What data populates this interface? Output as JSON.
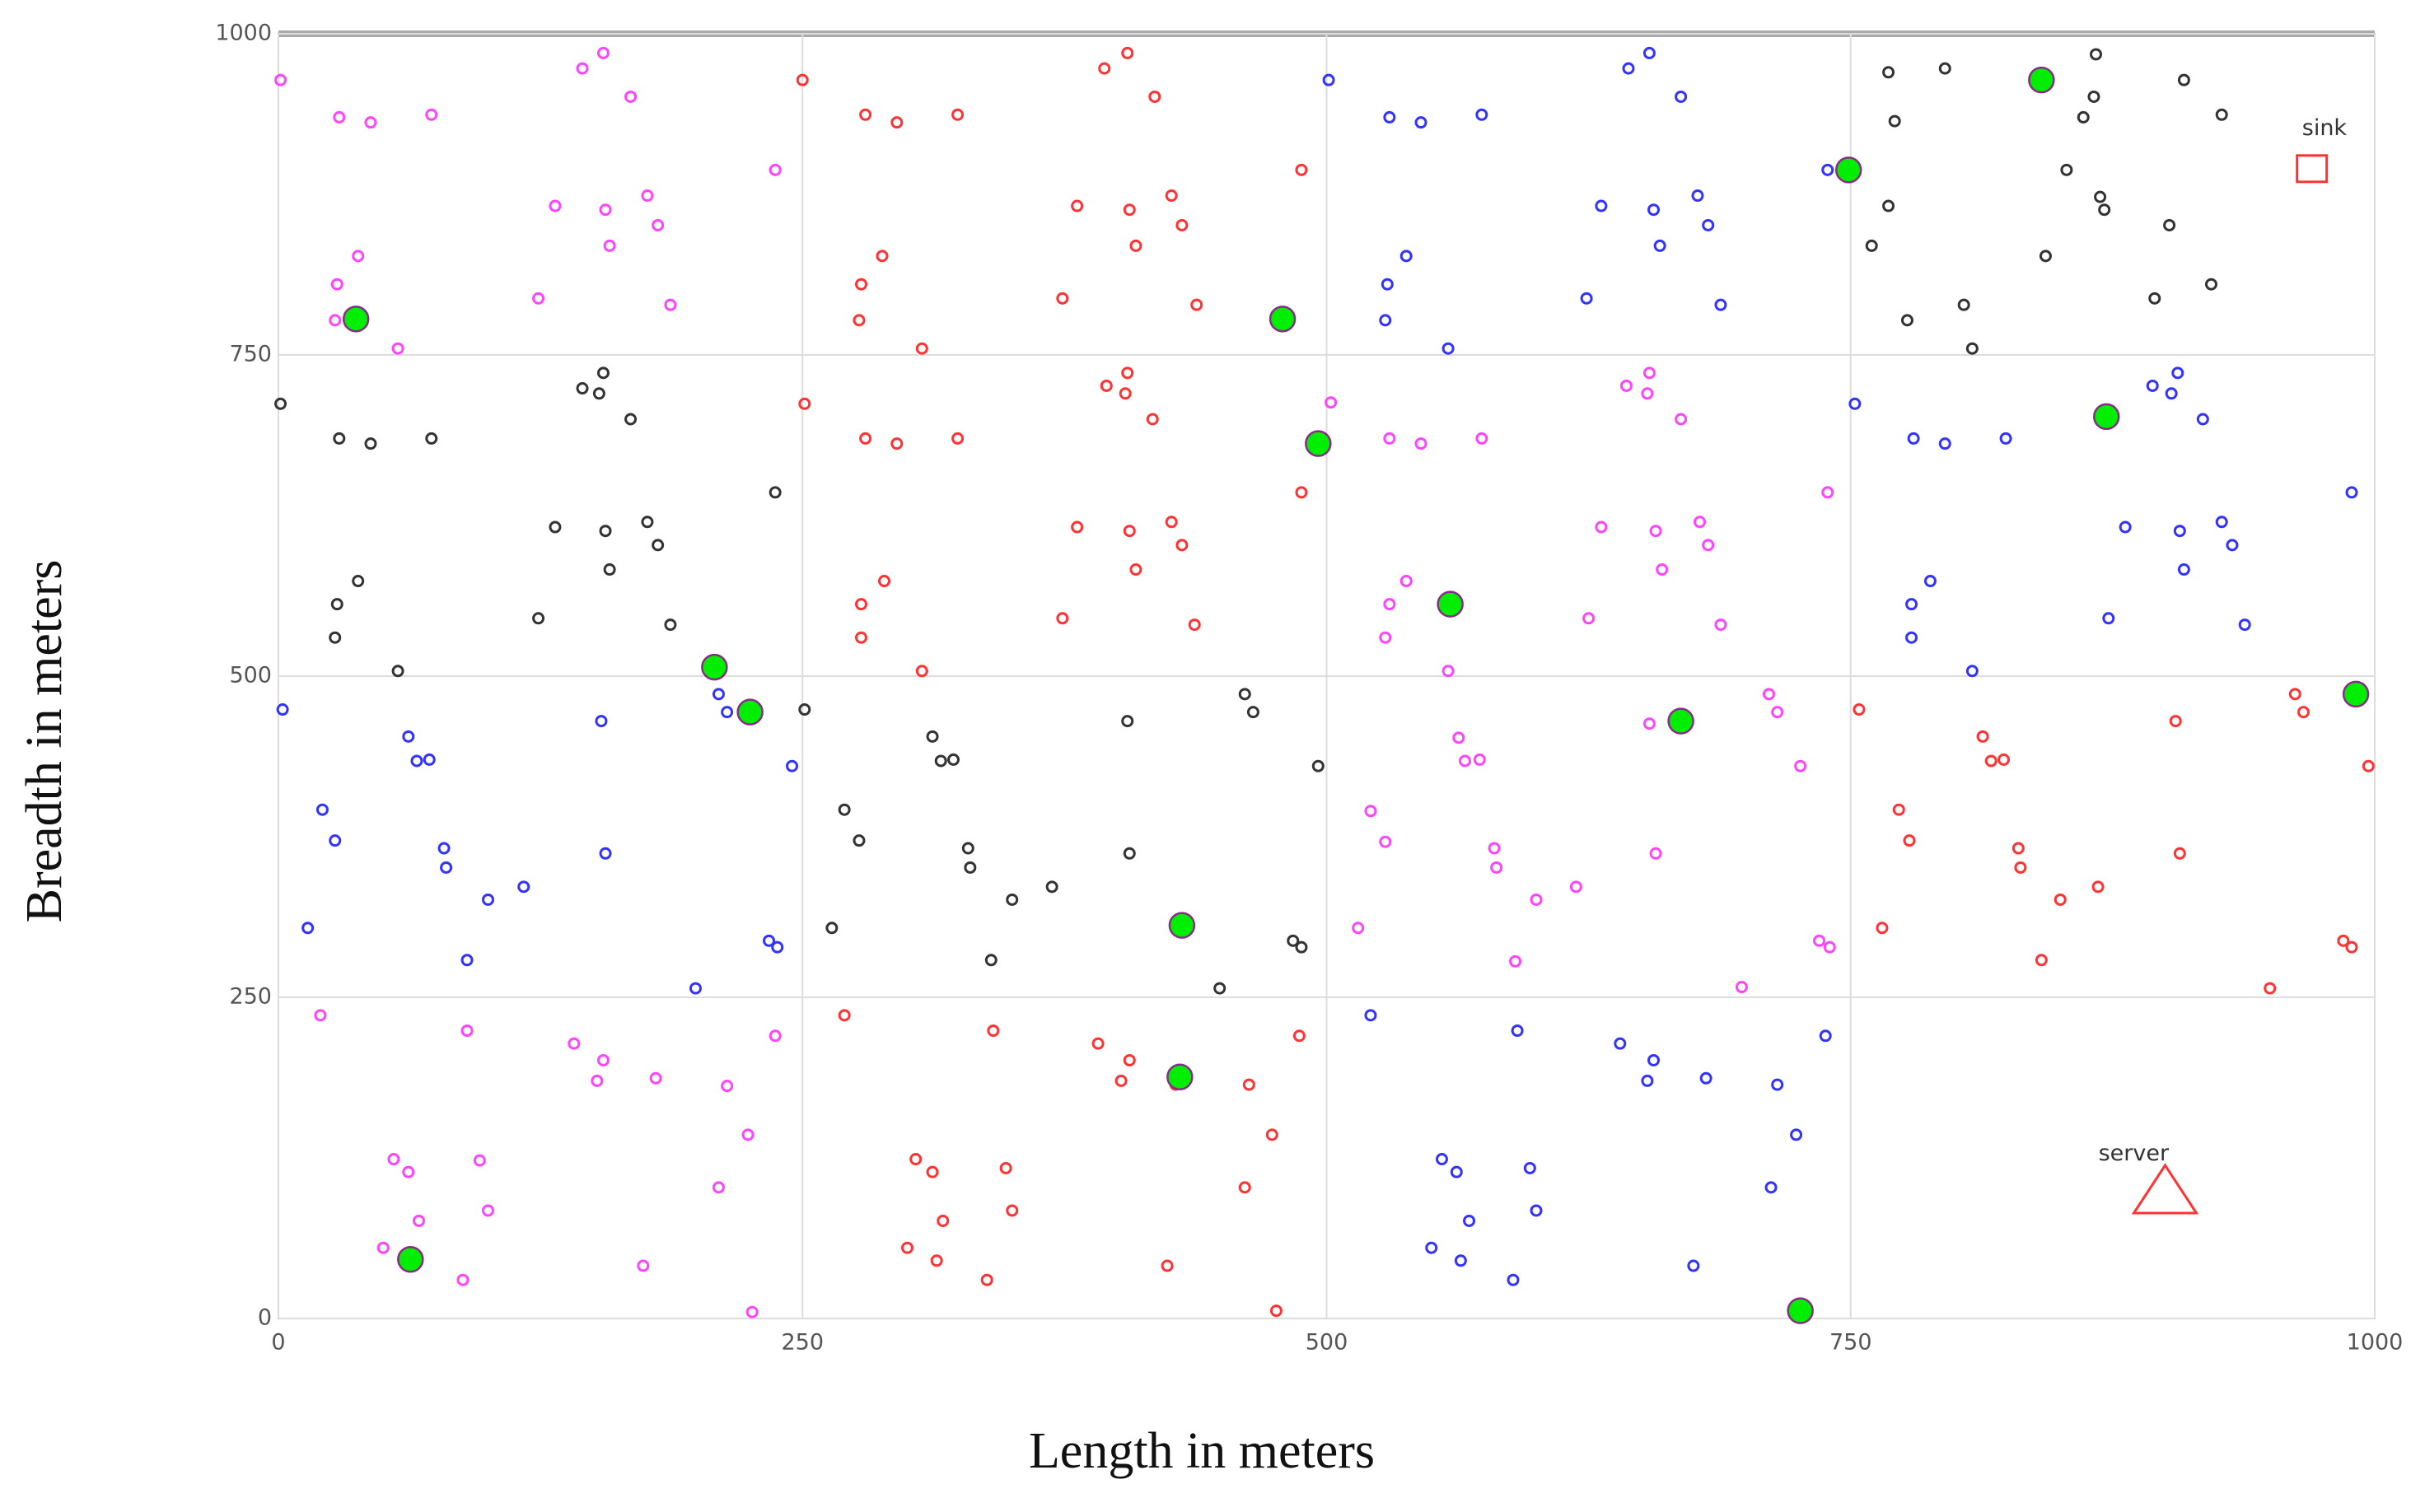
{
  "chart_data": {
    "type": "scatter",
    "x_label": "Length in meters",
    "y_label": "Breadth in meters",
    "xlim": [
      0,
      1000
    ],
    "ylim": [
      0,
      1000
    ],
    "xticks": [
      0,
      250,
      500,
      750,
      1000
    ],
    "yticks": [
      0,
      250,
      500,
      750,
      1000
    ],
    "grid": true,
    "series": [
      {
        "color": "#ff44ff",
        "marker": "ring",
        "x": [
          1,
          29,
          44,
          73,
          145,
          155,
          168,
          132,
          156,
          176,
          158,
          181,
          38,
          28,
          27,
          57,
          124,
          187,
          237,
          20,
          90,
          141,
          152,
          155,
          180,
          214,
          224,
          210,
          55,
          62,
          67,
          50,
          96,
          100,
          88,
          174,
          226,
          237,
          521,
          528,
          515,
          530,
          538,
          528,
          558,
          563,
          566,
          573,
          580,
          581,
          600,
          619,
          590,
          502,
          530,
          545,
          574,
          625,
          631,
          657,
          660,
          678,
          682,
          688,
          643,
          654,
          653,
          669,
          654,
          657,
          711,
          715,
          726,
          698,
          735,
          740,
          739
        ],
        "y": [
          964,
          935,
          931,
          937,
          973,
          985,
          951,
          866,
          863,
          874,
          835,
          851,
          827,
          805,
          777,
          755,
          794,
          789,
          894,
          236,
          224,
          214,
          185,
          201,
          187,
          181,
          143,
          102,
          124,
          114,
          76,
          55,
          123,
          84,
          30,
          41,
          5,
          220,
          395,
          371,
          304,
          556,
          574,
          530,
          504,
          452,
          434,
          435,
          366,
          351,
          326,
          336,
          278,
          713,
          685,
          681,
          685,
          545,
          616,
          613,
          583,
          620,
          602,
          540,
          726,
          736,
          720,
          700,
          463,
          362,
          486,
          472,
          430,
          258,
          294,
          289,
          643
        ]
      },
      {
        "color": "#ff3333",
        "marker": "ring",
        "x": [
          250,
          280,
          295,
          324,
          394,
          405,
          418,
          381,
          406,
          426,
          409,
          431,
          288,
          278,
          277,
          307,
          374,
          438,
          488,
          251,
          280,
          295,
          324,
          395,
          405,
          404,
          417,
          381,
          406,
          409,
          426,
          431,
          437,
          374,
          278,
          289,
          278,
          307,
          488,
          270,
          341,
          391,
          402,
          406,
          428,
          463,
          474,
          461,
          304,
          312,
          317,
          300,
          347,
          350,
          338,
          424,
          476,
          487,
          314,
          754,
          773,
          778,
          765,
          813,
          817,
          823,
          830,
          831,
          850,
          868,
          841,
          905,
          907,
          950,
          962,
          966,
          997,
          985,
          989
        ],
        "y": [
          964,
          937,
          931,
          937,
          973,
          985,
          951,
          866,
          863,
          874,
          835,
          851,
          827,
          805,
          777,
          755,
          794,
          789,
          894,
          712,
          685,
          681,
          685,
          726,
          736,
          720,
          700,
          616,
          613,
          583,
          620,
          602,
          540,
          545,
          556,
          574,
          530,
          504,
          643,
          236,
          224,
          214,
          185,
          201,
          182,
          182,
          143,
          102,
          124,
          114,
          76,
          55,
          117,
          84,
          30,
          41,
          6,
          220,
          45,
          474,
          396,
          372,
          304,
          453,
          434,
          435,
          366,
          351,
          326,
          336,
          279,
          465,
          362,
          257,
          486,
          472,
          430,
          294,
          289
        ]
      },
      {
        "color": "#3333ff",
        "marker": "ring",
        "x": [
          501,
          530,
          545,
          574,
          644,
          654,
          669,
          631,
          656,
          677,
          659,
          682,
          538,
          529,
          528,
          558,
          624,
          688,
          739,
          752,
          780,
          795,
          824,
          894,
          906,
          903,
          918,
          881,
          907,
          909,
          927,
          932,
          938,
          873,
          779,
          788,
          779,
          808,
          989,
          2,
          21,
          27,
          14,
          62,
          66,
          72,
          79,
          80,
          100,
          117,
          90,
          154,
          156,
          199,
          210,
          214,
          245,
          234,
          238,
          521,
          591,
          640,
          653,
          656,
          681,
          715,
          724,
          712,
          555,
          562,
          568,
          550,
          597,
          600,
          589,
          675,
          738,
          564
        ],
        "y": [
          964,
          935,
          931,
          937,
          973,
          985,
          951,
          866,
          863,
          874,
          835,
          851,
          827,
          805,
          777,
          755,
          794,
          789,
          894,
          712,
          685,
          681,
          685,
          726,
          736,
          720,
          700,
          616,
          613,
          583,
          620,
          602,
          540,
          545,
          556,
          574,
          530,
          504,
          643,
          474,
          396,
          372,
          304,
          453,
          434,
          435,
          366,
          351,
          326,
          336,
          279,
          465,
          362,
          257,
          486,
          472,
          430,
          294,
          289,
          236,
          224,
          214,
          185,
          201,
          187,
          182,
          143,
          102,
          124,
          114,
          76,
          55,
          117,
          84,
          30,
          41,
          220,
          45
        ]
      },
      {
        "color": "#333333",
        "marker": "ring",
        "x": [
          1,
          29,
          44,
          73,
          145,
          155,
          153,
          168,
          132,
          156,
          158,
          176,
          181,
          187,
          124,
          28,
          38,
          27,
          57,
          237,
          768,
          795,
          867,
          771,
          866,
          861,
          909,
          927,
          853,
          768,
          869,
          871,
          760,
          843,
          902,
          777,
          804,
          808,
          895,
          922,
          251,
          270,
          277,
          264,
          312,
          316,
          322,
          329,
          330,
          350,
          369,
          340,
          405,
          406,
          449,
          461,
          465,
          496,
          484,
          488
        ],
        "y": [
          712,
          685,
          681,
          685,
          724,
          736,
          720,
          700,
          616,
          613,
          583,
          620,
          602,
          540,
          545,
          556,
          574,
          530,
          504,
          643,
          970,
          973,
          984,
          932,
          951,
          935,
          964,
          937,
          894,
          866,
          873,
          863,
          835,
          827,
          851,
          777,
          789,
          755,
          794,
          805,
          474,
          396,
          372,
          304,
          453,
          434,
          435,
          366,
          351,
          326,
          336,
          279,
          465,
          362,
          257,
          486,
          472,
          430,
          294,
          289
        ]
      },
      {
        "color": "#00ee00",
        "marker": "filled",
        "x": [
          37,
          479,
          496,
          559,
          208,
          225,
          431,
          430,
          63,
          726,
          669,
          749,
          841,
          872,
          991
        ],
        "y": [
          778,
          778,
          681,
          556,
          507,
          472,
          306,
          188,
          46,
          6,
          465,
          894,
          964,
          702,
          486
        ]
      }
    ],
    "annotations": [
      {
        "text": "sink",
        "x": 976,
        "y": 926,
        "marker": "square",
        "marker_x": 970,
        "marker_y": 895,
        "color": "#ff3333"
      },
      {
        "text": "server",
        "x": 885,
        "y": 128,
        "marker": "triangle",
        "marker_x": 900,
        "marker_y": 100,
        "color": "#ff3333"
      }
    ]
  }
}
